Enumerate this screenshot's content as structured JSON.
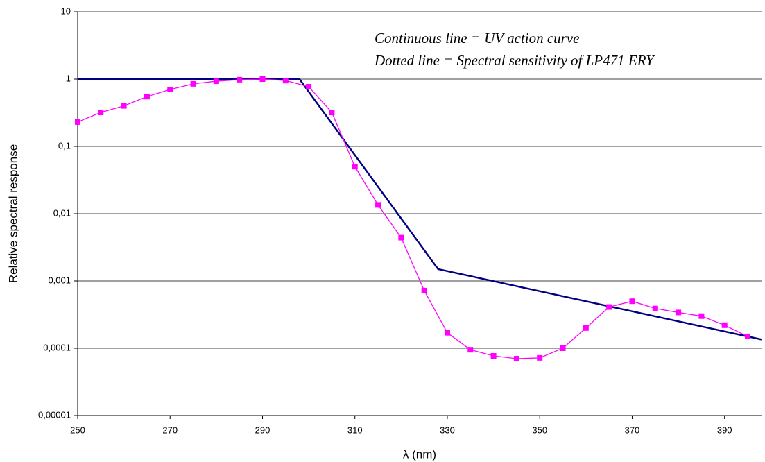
{
  "chart_data": {
    "type": "line",
    "xlabel": "λ (nm)",
    "ylabel": "Relative spectral response",
    "annotations": [
      "Continuous line  = UV action curve",
      "Dotted line = Spectral sensitivity of LP471 ERY"
    ],
    "xlim": [
      250,
      398
    ],
    "xticks": [
      250,
      270,
      290,
      310,
      330,
      350,
      370,
      390
    ],
    "ylim": [
      1e-05,
      10
    ],
    "yticks": [
      {
        "value": 1e-05,
        "label": "0,00001"
      },
      {
        "value": 0.0001,
        "label": "0,0001"
      },
      {
        "value": 0.001,
        "label": "0,001"
      },
      {
        "value": 0.01,
        "label": "0,01"
      },
      {
        "value": 0.1,
        "label": "0,1"
      },
      1,
      10
    ],
    "log_y": true,
    "grid": true,
    "series": [
      {
        "color": "#000080",
        "markers": false,
        "x": [
          250,
          298,
          328,
          398
        ],
        "values": [
          1,
          1,
          0.0015,
          0.000135
        ]
      },
      {
        "color": "#ff00ff",
        "markers": true,
        "x": [
          250,
          255,
          260,
          265,
          270,
          275,
          280,
          285,
          290,
          295,
          300,
          305,
          310,
          315,
          320,
          325,
          330,
          335,
          340,
          345,
          350,
          355,
          360,
          365,
          370,
          375,
          380,
          385,
          390,
          395
        ],
        "values": [
          0.23,
          0.32,
          0.4,
          0.55,
          0.7,
          0.85,
          0.93,
          0.98,
          1,
          0.95,
          0.77,
          0.32,
          0.05,
          0.0135,
          0.0044,
          0.00072,
          0.00017,
          9.5e-05,
          7.7e-05,
          7e-05,
          7.2e-05,
          0.0001,
          0.0002,
          0.00041,
          0.0005,
          0.00039,
          0.00034,
          0.0003,
          0.00022,
          0.00015
        ]
      }
    ]
  }
}
